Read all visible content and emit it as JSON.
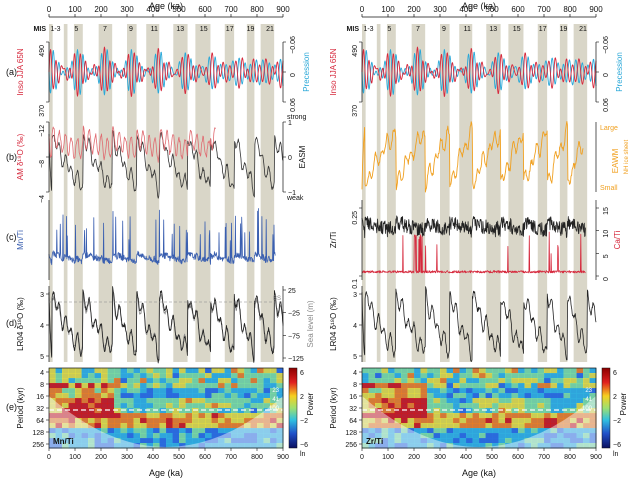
{
  "figure": {
    "age_axis_label": "Age (ka)",
    "age_ticks": [
      0,
      100,
      200,
      300,
      400,
      500,
      600,
      700,
      800,
      900
    ],
    "age_range": [
      0,
      900
    ],
    "mis_label": "MIS",
    "mis_stages": [
      {
        "label": "1-3",
        "age": 25
      },
      {
        "label": "5",
        "age": 105
      },
      {
        "label": "7",
        "age": 215
      },
      {
        "label": "9",
        "age": 315
      },
      {
        "label": "11",
        "age": 405
      },
      {
        "label": "13",
        "age": 505
      },
      {
        "label": "15",
        "age": 595
      },
      {
        "label": "17",
        "age": 695
      },
      {
        "label": "19",
        "age": 775
      },
      {
        "label": "21",
        "age": 850
      }
    ],
    "interglacial_bands": [
      [
        0,
        14
      ],
      [
        57,
        71
      ],
      [
        96,
        130
      ],
      [
        191,
        243
      ],
      [
        300,
        337
      ],
      [
        374,
        424
      ],
      [
        478,
        533
      ],
      [
        563,
        621
      ],
      [
        676,
        712
      ],
      [
        761,
        790
      ],
      [
        814,
        866
      ]
    ],
    "panel_letters": [
      "(a)",
      "(b)",
      "(c)",
      "(d)",
      "(e)"
    ],
    "colors": {
      "insolation": "#d6283c",
      "precession": "#2aa8d8",
      "easm": "#333333",
      "am_d18o": "#e06a70",
      "mnti": "#3a5fb0",
      "eawm": "#f0a020",
      "ca_ti": "#d6283c",
      "zr_ti": "#222222",
      "sea_level": "#8a8a8a",
      "lr04": "#222222",
      "band": "#d9d6c8"
    }
  },
  "chart_data": [
    {
      "id": "a-left",
      "type": "line",
      "panel": "(a)",
      "left_axis": {
        "label": "Inso JJA 65N",
        "ticks": [
          490,
          370
        ],
        "range": [
          370,
          490
        ]
      },
      "right_axis": {
        "label": "Precession",
        "ticks": [
          -0.06,
          0,
          0.06
        ],
        "range": [
          -0.06,
          0.06
        ],
        "inverted": true
      },
      "series": [
        {
          "name": "Inso JJA 65N",
          "note_periods_kyr": [
            23,
            41
          ]
        },
        {
          "name": "Precession",
          "note_periods_kyr": [
            23
          ]
        }
      ]
    },
    {
      "id": "a-right",
      "type": "line",
      "panel": "(a)",
      "left_axis": {
        "label": "Inso JJA 65N",
        "ticks": [
          490,
          370
        ],
        "range": [
          370,
          490
        ]
      },
      "right_axis": {
        "label": "Precession",
        "ticks": [
          -0.06,
          0,
          0.06
        ],
        "range": [
          -0.06,
          0.06
        ],
        "inverted": true
      }
    },
    {
      "id": "b-left",
      "type": "line",
      "panel": "(b)",
      "left_axis": {
        "label": "AM δ¹⁸O (‰)",
        "ticks": [
          -12,
          -8,
          -4
        ],
        "range": [
          -12,
          -4
        ],
        "inverted": true
      },
      "right_axis": {
        "label": "EASM",
        "ticks": [
          1,
          0,
          -1
        ],
        "range": [
          -1,
          1
        ],
        "top_note": "strong",
        "bottom_note": "weak"
      },
      "series": [
        {
          "name": "AM δ¹⁸O (‰)",
          "age_range": [
            0,
            640
          ]
        },
        {
          "name": "EASM",
          "age_range": [
            0,
            900
          ]
        }
      ]
    },
    {
      "id": "b-right",
      "type": "line",
      "panel": "(b)",
      "right_axis": {
        "label": "EAWM",
        "sub_label": "NH ice sheet",
        "top_note": "Large",
        "bottom_note": "Small"
      }
    },
    {
      "id": "c-left",
      "type": "line",
      "panel": "(c)",
      "left_axis": {
        "label": "Mn/Ti"
      },
      "series": [
        {
          "name": "Mn/Ti",
          "age_range": [
            0,
            870
          ]
        }
      ]
    },
    {
      "id": "c-right",
      "type": "line",
      "panel": "(c)",
      "left_axis": {
        "label": "Zr/Ti",
        "ticks": [
          0.25,
          0.1
        ],
        "range": [
          0.1,
          0.25
        ]
      },
      "right_axis": {
        "label": "Ca/Ti",
        "ticks": [
          15,
          10,
          5,
          0
        ],
        "range": [
          0,
          15
        ]
      }
    },
    {
      "id": "d-left",
      "type": "line",
      "panel": "(d)",
      "left_axis": {
        "label": "LR04 δ¹⁸O (‰)",
        "ticks": [
          3,
          4,
          5
        ],
        "range": [
          3,
          5
        ],
        "inverted": true
      },
      "right_axis": {
        "label": "Sea level (m)",
        "ticks": [
          25,
          -25,
          -75,
          -125
        ],
        "range": [
          -125,
          25
        ]
      },
      "annotation": "BS"
    },
    {
      "id": "d-right",
      "type": "line",
      "panel": "(d)",
      "left_axis": {
        "label": "LR04 δ¹⁸O (‰)",
        "ticks": [
          3,
          4,
          5
        ],
        "range": [
          3,
          5
        ],
        "inverted": true
      }
    },
    {
      "id": "e-left",
      "type": "heatmap",
      "panel": "(e)",
      "title_in_plot": "Mn/Ti",
      "y_axis": {
        "label": "Period (kyr)",
        "ticks": [
          4,
          8,
          16,
          32,
          64,
          128,
          256
        ],
        "scale": "log2",
        "inverted": true
      },
      "x_axis": {
        "label": "Age (ka)",
        "ticks": [
          0,
          100,
          200,
          300,
          400,
          500,
          600,
          700,
          800,
          900
        ]
      },
      "colorbar": {
        "label": "Power",
        "ticks": [
          6,
          2,
          -2,
          -6
        ],
        "unit": "ln"
      },
      "period_labels": [
        "23",
        "41",
        "100"
      ]
    },
    {
      "id": "e-right",
      "type": "heatmap",
      "panel": "(e)",
      "title_in_plot": "Zr/Ti",
      "y_axis": {
        "label": "Period (kyr)",
        "ticks": [
          4,
          8,
          16,
          32,
          64,
          128,
          256
        ],
        "scale": "log2",
        "inverted": true
      },
      "x_axis": {
        "label": "Age (ka)",
        "ticks": [
          0,
          100,
          200,
          300,
          400,
          500,
          600,
          700,
          800,
          900
        ]
      },
      "colorbar": {
        "label": "Power",
        "ticks": [
          6,
          2,
          -2,
          -6
        ],
        "unit": "ln"
      },
      "period_labels": [
        "23",
        "41",
        "100"
      ]
    }
  ]
}
